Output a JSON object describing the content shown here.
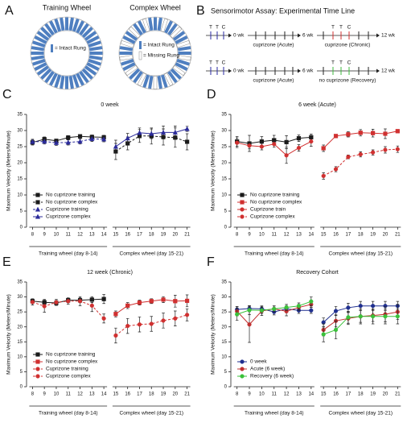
{
  "panel_a": {
    "label": "A",
    "wheels": [
      {
        "title": "Training Wheel",
        "legend": [
          "= Intact Rung"
        ]
      },
      {
        "title": "Complex Wheel",
        "legend": [
          "= Intact Rung",
          "= Missing Rung"
        ]
      }
    ]
  },
  "panel_b": {
    "label": "B",
    "title": "Sensorimotor Assay: Experimental Time Line",
    "rows": [
      {
        "start_marks": [
          "T",
          "T",
          "C"
        ],
        "start": "0 wk",
        "phase1": "cuprizone (Acute)",
        "mid": "6 wk",
        "end_marks": [
          "T",
          "T",
          "C"
        ],
        "phase2": "cuprizone (Chronic)",
        "end": "12 wk",
        "start_color": "#2a2aa0",
        "end_color": "#d03030"
      },
      {
        "start_marks": [
          "T",
          "T",
          "C"
        ],
        "start": "0 wk",
        "phase1": "cuprizone (Acute)",
        "mid": "6 wk",
        "end_marks": [
          "T",
          "T",
          "C"
        ],
        "phase2": "no cuprizone (Recovery)",
        "end": "12 wk",
        "start_color": "#2a2aa0",
        "end_color": "#3cb83c"
      }
    ]
  },
  "chart_data": [
    {
      "type": "line",
      "panel_label": "C",
      "title": "0 week",
      "y_label": "Maximum Velocity (Meters/Minute)",
      "x": [
        8,
        9,
        10,
        11,
        12,
        13,
        14,
        15,
        16,
        17,
        18,
        19,
        20,
        21
      ],
      "xlim": [
        7.5,
        21.5
      ],
      "xticks": [
        8,
        9,
        10,
        11,
        12,
        13,
        14,
        15,
        16,
        17,
        18,
        19,
        20,
        21
      ],
      "ylim": [
        0,
        35
      ],
      "yticks": [
        0,
        5,
        10,
        15,
        20,
        25,
        30,
        35
      ],
      "x_groups": [
        {
          "label": "Training wheel (day 8-14)",
          "from": 8,
          "to": 14
        },
        {
          "label": "Complex wheel (day 15-21)",
          "from": 15,
          "to": 21
        }
      ],
      "legend": "lower left",
      "series": [
        {
          "name": "No cuprizone training",
          "color": "#1a1a1a",
          "dashed": false,
          "marker": "square",
          "values": [
            26.3,
            27.3,
            26.8,
            27.8,
            28.2,
            28.0,
            27.9,
            null,
            null,
            null,
            null,
            null,
            null,
            null
          ],
          "errors": [
            0.8,
            0.7,
            0.5,
            0.6,
            0.5,
            0.6,
            0.6,
            null,
            null,
            null,
            null,
            null,
            null,
            null
          ]
        },
        {
          "name": "No cuprizone complex",
          "color": "#1a1a1a",
          "dashed": true,
          "marker": "square",
          "values": [
            null,
            null,
            null,
            null,
            null,
            null,
            null,
            23.5,
            26.0,
            28.3,
            28.3,
            28.0,
            27.8,
            26.5
          ],
          "errors": [
            null,
            null,
            null,
            null,
            null,
            null,
            null,
            2.5,
            2.0,
            2.0,
            2.5,
            2.5,
            3.0,
            2.5
          ]
        },
        {
          "name": "Cuprizone training",
          "color": "#2b2b9a",
          "dashed": true,
          "marker": "triangle",
          "values": [
            26.5,
            26.6,
            26.2,
            26.3,
            26.6,
            27.4,
            27.3,
            null,
            null,
            null,
            null,
            null,
            null,
            null
          ],
          "errors": [
            0.8,
            0.8,
            0.8,
            0.8,
            0.8,
            0.8,
            0.8,
            null,
            null,
            null,
            null,
            null,
            null,
            null
          ]
        },
        {
          "name": "Cuprizone complex",
          "color": "#2b2b9a",
          "dashed": false,
          "marker": "triangle",
          "values": [
            null,
            null,
            null,
            null,
            null,
            null,
            null,
            25.0,
            27.6,
            29.3,
            29.0,
            29.4,
            29.4,
            30.5
          ],
          "errors": [
            null,
            null,
            null,
            null,
            null,
            null,
            null,
            2.0,
            1.5,
            1.5,
            1.5,
            2.0,
            2.0,
            0.8
          ]
        }
      ]
    },
    {
      "type": "line",
      "panel_label": "D",
      "title": "6 week (Acute)",
      "y_label": "Maximum Velocity (Meters/Minute)",
      "x": [
        8,
        9,
        10,
        11,
        12,
        13,
        14,
        15,
        16,
        17,
        18,
        19,
        20,
        21
      ],
      "xlim": [
        7.5,
        21.5
      ],
      "xticks": [
        8,
        9,
        10,
        11,
        12,
        13,
        14,
        15,
        16,
        17,
        18,
        19,
        20,
        21
      ],
      "ylim": [
        0,
        35
      ],
      "yticks": [
        0,
        5,
        10,
        15,
        20,
        25,
        30,
        35
      ],
      "x_groups": [
        {
          "label": "Training wheel (day 8-14)",
          "from": 8,
          "to": 14
        },
        {
          "label": "Complex wheel (day 15-21)",
          "from": 15,
          "to": 21
        }
      ],
      "legend": "lower left",
      "series": [
        {
          "name": "No cuprizone training",
          "color": "#1a1a1a",
          "dashed": false,
          "marker": "square",
          "values": [
            26.6,
            26.0,
            26.6,
            27.0,
            26.4,
            27.6,
            27.9,
            null,
            null,
            null,
            null,
            null,
            null,
            null
          ],
          "errors": [
            1.5,
            2.5,
            1.5,
            1.5,
            2.0,
            1.0,
            1.0,
            null,
            null,
            null,
            null,
            null,
            null,
            null
          ]
        },
        {
          "name": "No cuprizone complex",
          "color": "#d03030",
          "dashed": false,
          "marker": "square",
          "values": [
            null,
            null,
            null,
            null,
            null,
            null,
            null,
            24.5,
            28.3,
            28.8,
            29.3,
            29.2,
            29.0,
            29.8
          ],
          "errors": [
            null,
            null,
            null,
            null,
            null,
            null,
            null,
            1.0,
            0.5,
            0.8,
            1.0,
            1.2,
            1.5,
            0.5
          ]
        },
        {
          "name": "Cuprizone train",
          "color": "#d03030",
          "dashed": false,
          "marker": "circle",
          "values": [
            26.2,
            25.3,
            25.0,
            25.8,
            22.3,
            24.6,
            26.6,
            null,
            null,
            null,
            null,
            null,
            null,
            null
          ],
          "errors": [
            1.5,
            1.0,
            1.0,
            1.0,
            2.5,
            1.0,
            1.5,
            null,
            null,
            null,
            null,
            null,
            null,
            null
          ]
        },
        {
          "name": "Cuprizone complex",
          "color": "#d03030",
          "dashed": true,
          "marker": "circle",
          "values": [
            null,
            null,
            null,
            null,
            null,
            null,
            null,
            15.9,
            18.0,
            21.8,
            22.6,
            23.2,
            24.0,
            24.2
          ],
          "errors": [
            null,
            null,
            null,
            null,
            null,
            null,
            null,
            1.0,
            0.8,
            0.6,
            0.8,
            0.8,
            1.0,
            1.0
          ]
        }
      ]
    },
    {
      "type": "line",
      "panel_label": "E",
      "title": "12 week (Chronic)",
      "y_label": "Maximum Velocity (Meters/Minute)",
      "x": [
        8,
        9,
        10,
        11,
        12,
        13,
        14,
        15,
        16,
        17,
        18,
        19,
        20,
        21
      ],
      "xlim": [
        7.5,
        21.5
      ],
      "xticks": [
        8,
        9,
        10,
        11,
        12,
        13,
        14,
        15,
        16,
        17,
        18,
        19,
        20,
        21
      ],
      "ylim": [
        0,
        35
      ],
      "yticks": [
        0,
        5,
        10,
        15,
        20,
        25,
        30,
        35
      ],
      "x_groups": [
        {
          "label": "Training wheel (day 8-14)",
          "from": 8,
          "to": 14
        },
        {
          "label": "Complex wheel (day 15-21)",
          "from": 15,
          "to": 21
        }
      ],
      "legend": "lower left",
      "series": [
        {
          "name": "No cuprizone training",
          "color": "#1a1a1a",
          "dashed": false,
          "marker": "square",
          "values": [
            28.6,
            28.2,
            28.0,
            28.9,
            28.9,
            29.1,
            29.3,
            null,
            null,
            null,
            null,
            null,
            null,
            null
          ],
          "errors": [
            0.8,
            1.0,
            0.8,
            0.8,
            0.8,
            1.0,
            1.5,
            null,
            null,
            null,
            null,
            null,
            null,
            null
          ]
        },
        {
          "name": "No cuprizone complex",
          "color": "#d03030",
          "dashed": false,
          "marker": "square",
          "values": [
            null,
            null,
            null,
            null,
            null,
            null,
            null,
            24.3,
            27.1,
            28.1,
            28.6,
            29.1,
            28.6,
            28.7
          ],
          "errors": [
            null,
            null,
            null,
            null,
            null,
            null,
            null,
            1.0,
            1.0,
            0.8,
            0.8,
            1.0,
            2.0,
            2.0
          ]
        },
        {
          "name": "Cuprizone training",
          "color": "#d03030",
          "dashed": true,
          "marker": "circle",
          "values": [
            28.3,
            26.9,
            28.2,
            28.6,
            28.6,
            27.1,
            22.8,
            null,
            null,
            null,
            null,
            null,
            null,
            null
          ],
          "errors": [
            1.0,
            2.0,
            1.0,
            1.0,
            1.5,
            2.0,
            1.5,
            null,
            null,
            null,
            null,
            null,
            null,
            null
          ]
        },
        {
          "name": "Cuprizone complex",
          "color": "#d03030",
          "dashed": true,
          "marker": "circle",
          "values": [
            null,
            null,
            null,
            null,
            null,
            null,
            null,
            17.1,
            20.3,
            20.8,
            21.0,
            22.1,
            22.8,
            24.0
          ],
          "errors": [
            null,
            null,
            null,
            null,
            null,
            null,
            null,
            2.5,
            2.5,
            2.5,
            2.5,
            2.5,
            2.5,
            2.0
          ]
        }
      ]
    },
    {
      "type": "line",
      "panel_label": "F",
      "title": "Recovery Cohort",
      "y_label": "Maximum Velocity (Meters/Minute)",
      "x": [
        8,
        9,
        10,
        11,
        12,
        13,
        14,
        15,
        16,
        17,
        18,
        19,
        20,
        21
      ],
      "xlim": [
        7.5,
        21.5
      ],
      "xticks": [
        8,
        9,
        10,
        11,
        12,
        13,
        14,
        15,
        16,
        17,
        18,
        19,
        20,
        21
      ],
      "ylim": [
        0,
        35
      ],
      "yticks": [
        0,
        5,
        10,
        15,
        20,
        25,
        30,
        35
      ],
      "x_groups": [
        {
          "label": "Training wheel (day 8-14)",
          "from": 8,
          "to": 14
        },
        {
          "label": "Complex wheel (day 15-21)",
          "from": 15,
          "to": 21
        }
      ],
      "legend": "lower left",
      "series": [
        {
          "name": "0 week",
          "color": "#1f2f8f",
          "dashed": false,
          "marker": "circle",
          "values": [
            25.8,
            26.1,
            26.0,
            25.0,
            26.0,
            25.5,
            25.5,
            21.5,
            25.3,
            26.4,
            27.0,
            27.0,
            27.0,
            27.0
          ],
          "errors": [
            1.0,
            1.0,
            1.0,
            1.0,
            1.0,
            1.0,
            1.0,
            1.5,
            1.5,
            1.5,
            1.5,
            1.5,
            1.5,
            1.5
          ]
        },
        {
          "name": "Acute (6 week)",
          "color": "#c03030",
          "dashed": false,
          "marker": "circle",
          "values": [
            25.2,
            20.8,
            25.3,
            26.0,
            25.2,
            26.5,
            27.5,
            19.0,
            22.0,
            22.8,
            23.5,
            23.8,
            24.2,
            25.0
          ],
          "errors": [
            1.5,
            6.0,
            1.5,
            1.0,
            1.5,
            1.0,
            1.0,
            2.0,
            2.0,
            2.0,
            2.0,
            2.0,
            2.5,
            2.5
          ]
        },
        {
          "name": "Recovery (6 week)",
          "color": "#3ac13a",
          "dashed": false,
          "marker": "circle",
          "values": [
            24.2,
            25.6,
            25.5,
            26.0,
            26.5,
            27.0,
            28.5,
            17.5,
            19.0,
            23.2,
            23.5,
            23.5,
            23.5,
            23.5
          ],
          "errors": [
            2.0,
            1.5,
            1.0,
            1.0,
            1.0,
            1.0,
            1.5,
            2.5,
            3.0,
            2.0,
            2.5,
            2.5,
            2.5,
            2.5
          ]
        }
      ]
    }
  ]
}
